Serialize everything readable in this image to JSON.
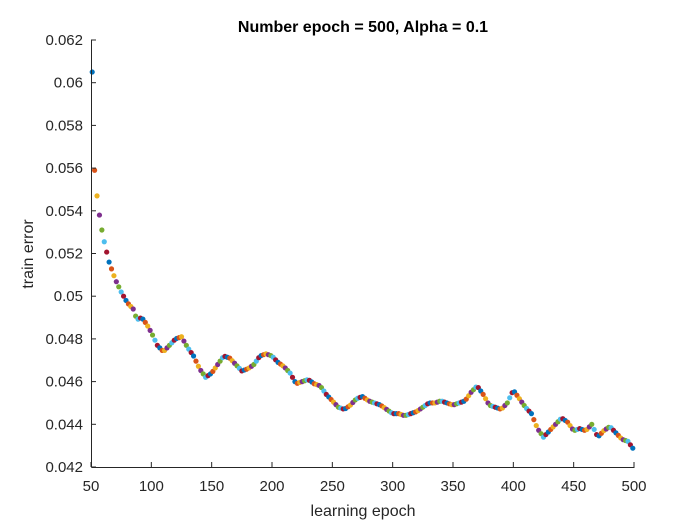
{
  "chart_data": {
    "type": "scatter",
    "title": "Number epoch = 500, Alpha = 0.1",
    "xlabel": "learning epoch",
    "ylabel": "train error",
    "xlim": [
      50,
      500
    ],
    "ylim": [
      0.042,
      0.062
    ],
    "xticks": [
      "50",
      "100",
      "150",
      "200",
      "250",
      "300",
      "350",
      "400",
      "450",
      "500"
    ],
    "yticks": [
      "0.042",
      "0.044",
      "0.046",
      "0.048",
      "0.05",
      "0.052",
      "0.054",
      "0.056",
      "0.058",
      "0.06",
      "0.062"
    ],
    "grid": false,
    "marker_colors": [
      "#0072BD",
      "#D95319",
      "#EDB120",
      "#7E2F8E",
      "#77AC30",
      "#4DBEEE",
      "#A2142F"
    ],
    "anchors": [
      [
        51,
        0.0605
      ],
      [
        52,
        0.0566
      ],
      [
        53,
        0.0559
      ],
      [
        54,
        0.0552
      ],
      [
        55,
        0.0547
      ],
      [
        56,
        0.0542
      ],
      [
        57,
        0.0538
      ],
      [
        58,
        0.0534
      ],
      [
        60,
        0.0528
      ],
      [
        62,
        0.0523
      ],
      [
        65,
        0.0516
      ],
      [
        70,
        0.0508
      ],
      [
        75,
        0.0502
      ],
      [
        80,
        0.0497
      ],
      [
        85,
        0.0494
      ],
      [
        88,
        0.0489
      ],
      [
        92,
        0.049
      ],
      [
        96,
        0.0487
      ],
      [
        100,
        0.0483
      ],
      [
        105,
        0.0477
      ],
      [
        110,
        0.0474
      ],
      [
        115,
        0.0477
      ],
      [
        120,
        0.048
      ],
      [
        125,
        0.0481
      ],
      [
        130,
        0.0476
      ],
      [
        135,
        0.0472
      ],
      [
        140,
        0.0466
      ],
      [
        145,
        0.0462
      ],
      [
        150,
        0.0464
      ],
      [
        155,
        0.0468
      ],
      [
        160,
        0.0472
      ],
      [
        165,
        0.0471
      ],
      [
        170,
        0.0468
      ],
      [
        175,
        0.0465
      ],
      [
        180,
        0.0466
      ],
      [
        185,
        0.0468
      ],
      [
        190,
        0.0472
      ],
      [
        195,
        0.0473
      ],
      [
        200,
        0.0472
      ],
      [
        205,
        0.0469
      ],
      [
        210,
        0.0467
      ],
      [
        215,
        0.0464
      ],
      [
        220,
        0.0459
      ],
      [
        225,
        0.046
      ],
      [
        230,
        0.0461
      ],
      [
        235,
        0.0459
      ],
      [
        240,
        0.0458
      ],
      [
        245,
        0.0454
      ],
      [
        250,
        0.0451
      ],
      [
        255,
        0.0448
      ],
      [
        260,
        0.0447
      ],
      [
        265,
        0.0449
      ],
      [
        270,
        0.0452
      ],
      [
        275,
        0.0453
      ],
      [
        280,
        0.0451
      ],
      [
        285,
        0.045
      ],
      [
        290,
        0.0449
      ],
      [
        295,
        0.0447
      ],
      [
        300,
        0.0445
      ],
      [
        305,
        0.0445
      ],
      [
        310,
        0.0444
      ],
      [
        315,
        0.0445
      ],
      [
        320,
        0.0446
      ],
      [
        325,
        0.0448
      ],
      [
        330,
        0.045
      ],
      [
        335,
        0.045
      ],
      [
        340,
        0.0451
      ],
      [
        345,
        0.045
      ],
      [
        350,
        0.0449
      ],
      [
        355,
        0.045
      ],
      [
        360,
        0.0451
      ],
      [
        365,
        0.0455
      ],
      [
        370,
        0.0458
      ],
      [
        375,
        0.0454
      ],
      [
        380,
        0.0449
      ],
      [
        385,
        0.0448
      ],
      [
        390,
        0.0447
      ],
      [
        395,
        0.045
      ],
      [
        400,
        0.0456
      ],
      [
        405,
        0.0452
      ],
      [
        410,
        0.0448
      ],
      [
        415,
        0.0445
      ],
      [
        420,
        0.0438
      ],
      [
        425,
        0.0434
      ],
      [
        430,
        0.0437
      ],
      [
        435,
        0.044
      ],
      [
        440,
        0.0443
      ],
      [
        445,
        0.0441
      ],
      [
        450,
        0.0437
      ],
      [
        455,
        0.0438
      ],
      [
        460,
        0.0437
      ],
      [
        465,
        0.044
      ],
      [
        470,
        0.0434
      ],
      [
        475,
        0.0437
      ],
      [
        480,
        0.0439
      ],
      [
        485,
        0.0436
      ],
      [
        490,
        0.0433
      ],
      [
        495,
        0.0432
      ],
      [
        500,
        0.0428
      ]
    ]
  }
}
